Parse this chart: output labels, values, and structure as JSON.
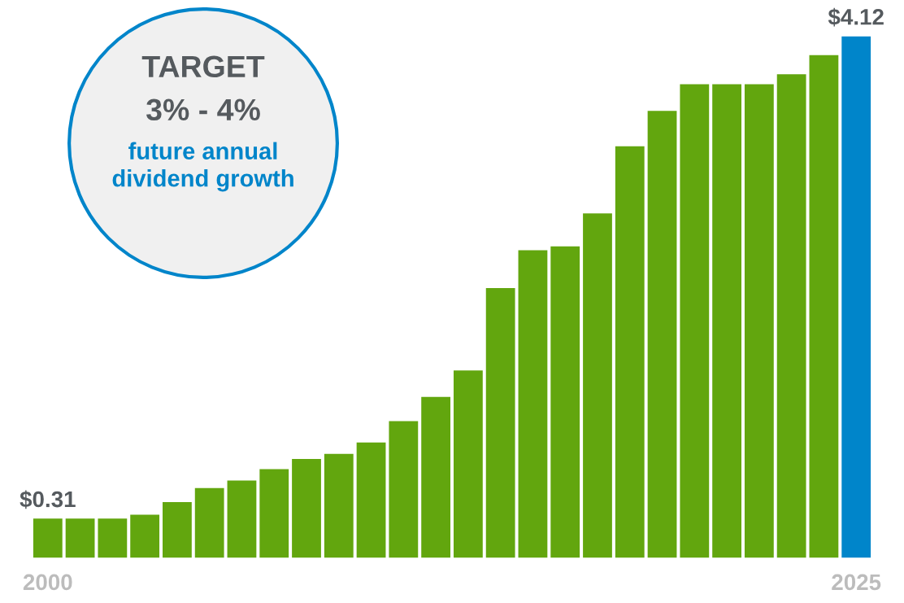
{
  "chart_data": {
    "type": "bar",
    "categories": [
      "2000",
      null,
      null,
      null,
      null,
      null,
      null,
      null,
      null,
      null,
      null,
      null,
      null,
      null,
      null,
      null,
      null,
      null,
      null,
      null,
      null,
      null,
      null,
      null,
      null,
      "2025"
    ],
    "values": [
      0.31,
      0.31,
      0.31,
      0.34,
      0.44,
      0.55,
      0.61,
      0.7,
      0.78,
      0.82,
      0.91,
      1.08,
      1.27,
      1.48,
      2.13,
      2.43,
      2.46,
      2.72,
      3.25,
      3.53,
      3.74,
      3.74,
      3.74,
      3.82,
      3.97,
      4.12
    ],
    "colors": [
      "#62a60e",
      "#62a60e",
      "#62a60e",
      "#62a60e",
      "#62a60e",
      "#62a60e",
      "#62a60e",
      "#62a60e",
      "#62a60e",
      "#62a60e",
      "#62a60e",
      "#62a60e",
      "#62a60e",
      "#62a60e",
      "#62a60e",
      "#62a60e",
      "#62a60e",
      "#62a60e",
      "#62a60e",
      "#62a60e",
      "#62a60e",
      "#62a60e",
      "#62a60e",
      "#62a60e",
      "#62a60e",
      "#0085ca"
    ],
    "value_labels": [
      "$0.31",
      null,
      null,
      null,
      null,
      null,
      null,
      null,
      null,
      null,
      null,
      null,
      null,
      null,
      null,
      null,
      null,
      null,
      null,
      null,
      null,
      null,
      null,
      null,
      null,
      "$4.12"
    ],
    "tick_labels": "x",
    "grid": false,
    "legend": false,
    "annotations": [
      "TARGET",
      "3% - 4%",
      "future annual\ndividend growth"
    ]
  }
}
